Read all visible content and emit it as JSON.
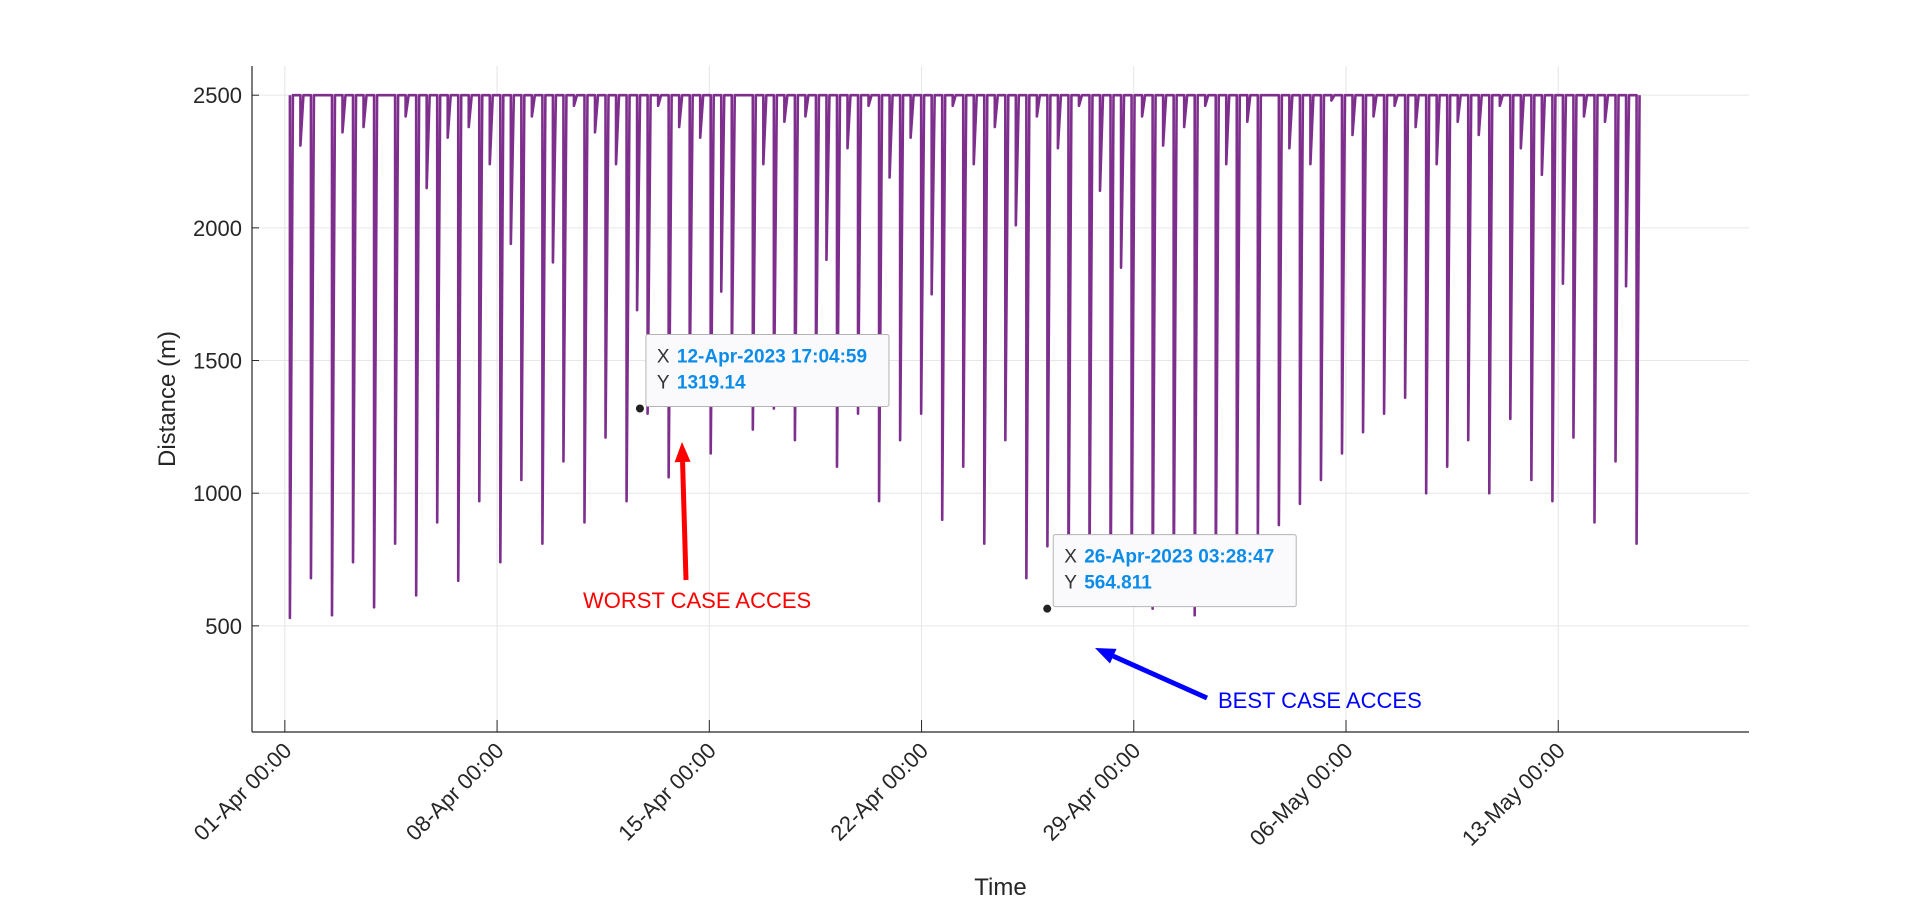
{
  "chart_data": {
    "type": "line",
    "title": "",
    "xlabel": "Time",
    "ylabel": "Distance (m)",
    "x_range": [
      "2023-03-30T22:00:00",
      "2023-05-19T07:00:00"
    ],
    "ylim": [
      100,
      2610
    ],
    "yticks": [
      500,
      1000,
      1500,
      2000,
      2500
    ],
    "xticks": [
      {
        "value": "2023-04-01T00:00:00",
        "label": "01-Apr 00:00"
      },
      {
        "value": "2023-04-08T00:00:00",
        "label": "08-Apr 00:00"
      },
      {
        "value": "2023-04-15T00:00:00",
        "label": "15-Apr 00:00"
      },
      {
        "value": "2023-04-22T00:00:00",
        "label": "22-Apr 00:00"
      },
      {
        "value": "2023-04-29T00:00:00",
        "label": "29-Apr 00:00"
      },
      {
        "value": "2023-05-06T00:00:00",
        "label": "06-May 00:00"
      },
      {
        "value": "2023-05-13T00:00:00",
        "label": "13-May 00:00"
      }
    ],
    "grid": true,
    "series": [
      {
        "color": "#7e2f8e",
        "start": "2023-04-01T04:00:00",
        "end": "2023-05-15T14:00:00",
        "max_distance": 2500,
        "pass_min_distance": [
          530,
          2310,
          680,
          2500,
          540,
          2360,
          740,
          2380,
          570,
          2500,
          810,
          2420,
          615,
          2150,
          890,
          2340,
          670,
          2380,
          970,
          2240,
          740,
          1940,
          1050,
          2420,
          810,
          1870,
          1120,
          2460,
          890,
          2360,
          1210,
          2240,
          970,
          1690,
          1300,
          2460,
          1060,
          2380,
          1400,
          2340,
          1150,
          1760,
          1480,
          2500,
          1240,
          2240,
          1319.14,
          2400,
          1200,
          2420,
          1400,
          1880,
          1100,
          2300,
          1300,
          2460,
          970,
          2190,
          1200,
          2340,
          1300,
          1750,
          900,
          2460,
          1100,
          2240,
          810,
          2380,
          1200,
          2010,
          680,
          2420,
          800,
          2300,
          620,
          2460,
          720,
          2140,
          580,
          1850,
          680,
          2420,
          564.811,
          2310,
          610,
          2380,
          540,
          2460,
          650,
          2240,
          700,
          2400,
          820,
          2500,
          880,
          2300,
          960,
          2240,
          1050,
          2480,
          1150,
          2350,
          1230,
          2420,
          1300,
          2460,
          1360,
          2380,
          1000,
          2240,
          1100,
          2400,
          1200,
          2350,
          1000,
          2460,
          1280,
          2300,
          1050,
          2200,
          970,
          1790,
          1210,
          2420,
          890,
          2400,
          1120,
          1780,
          810
        ]
      }
    ],
    "datatips": [
      {
        "x_prefix": "X",
        "x": "12-Apr-2023 17:04:59",
        "y_prefix": "Y",
        "y": "1319.14",
        "x_value": "2023-04-12T17:04:59",
        "y_value": 1319.14
      },
      {
        "x_prefix": "X",
        "x": "26-Apr-2023 03:28:47",
        "y_prefix": "Y",
        "y": "564.811",
        "x_value": "2023-04-26T03:28:47",
        "y_value": 564.811
      }
    ],
    "annotations": [
      {
        "text": "WORST CASE ACCES",
        "color": "#ff0000",
        "points_to": "12-Apr-2023 17:04:59"
      },
      {
        "text": "BEST CASE ACCES",
        "color": "#0000ff",
        "points_to": "26-Apr-2023 03:28:47"
      }
    ]
  }
}
